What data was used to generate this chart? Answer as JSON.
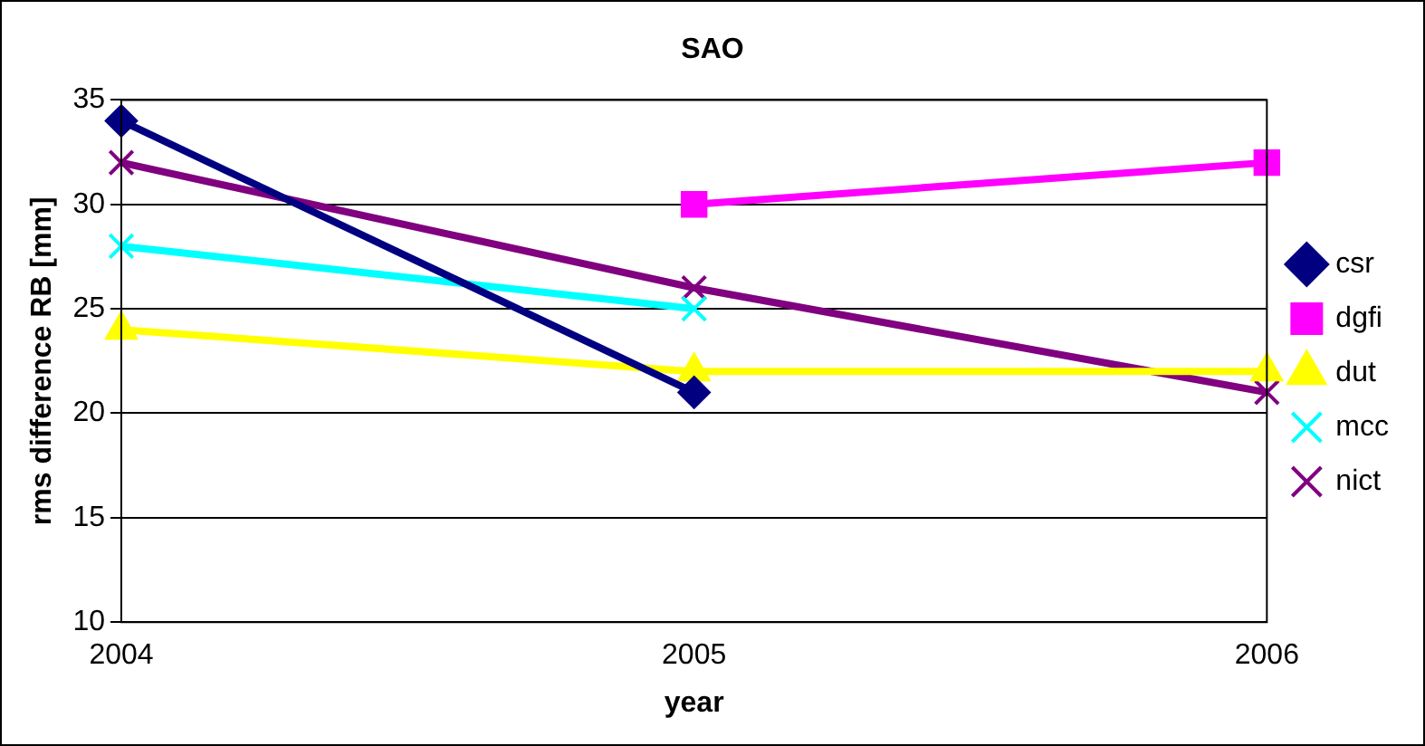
{
  "chart_data": {
    "type": "line",
    "title": "SAO",
    "xlabel": "year",
    "ylabel": "rms difference RB [mm]",
    "categories": [
      "2004",
      "2005",
      "2006"
    ],
    "series": [
      {
        "name": "csr",
        "color": "#000080",
        "marker": "diamond",
        "values": [
          34,
          21,
          null
        ]
      },
      {
        "name": "dgfi",
        "color": "#ff00ff",
        "marker": "square",
        "values": [
          null,
          30,
          32
        ]
      },
      {
        "name": "dut",
        "color": "#ffff00",
        "marker": "triangle",
        "values": [
          24,
          22,
          22
        ]
      },
      {
        "name": "mcc",
        "color": "#00ffff",
        "marker": "cross",
        "values": [
          28,
          25,
          null
        ]
      },
      {
        "name": "nict",
        "color": "#800080",
        "marker": "cross",
        "values": [
          32,
          26,
          21
        ]
      }
    ],
    "ylim": [
      10,
      35
    ],
    "yticks": [
      10,
      15,
      20,
      25,
      30,
      35
    ],
    "grid": "y",
    "legend": "right",
    "line_style": "solid"
  }
}
